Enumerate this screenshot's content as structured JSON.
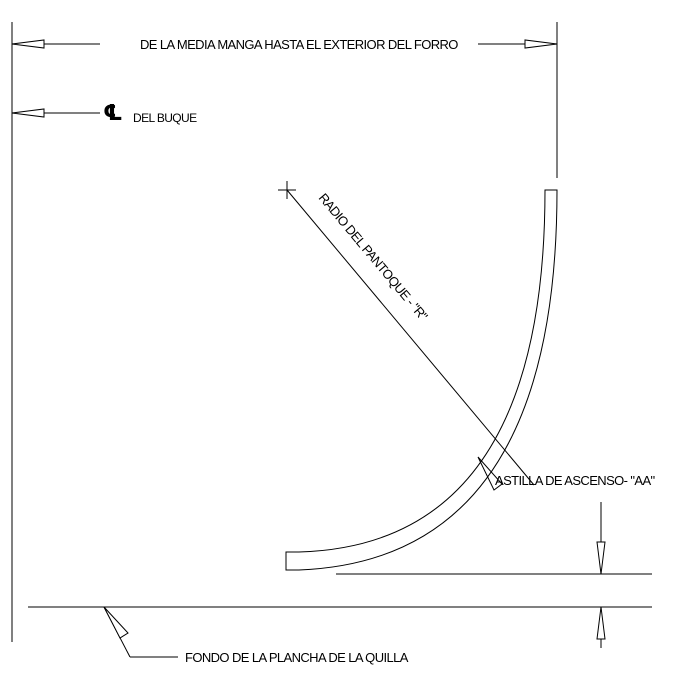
{
  "labels": {
    "half_breadth": "DE LA MEDIA MANGA HASTA EL EXTERIOR DEL FORRO",
    "centerline_symbol": "℄",
    "centerline": "DEL BUQUE",
    "bilge_radius": "RADIO DEL PANTOQUE - \"R\"",
    "deadrise": "ASTILLA DE ASCENSO- \"AA\"",
    "keel_bottom": "FONDO DE LA PLANCHA DE LA QUILLA"
  }
}
